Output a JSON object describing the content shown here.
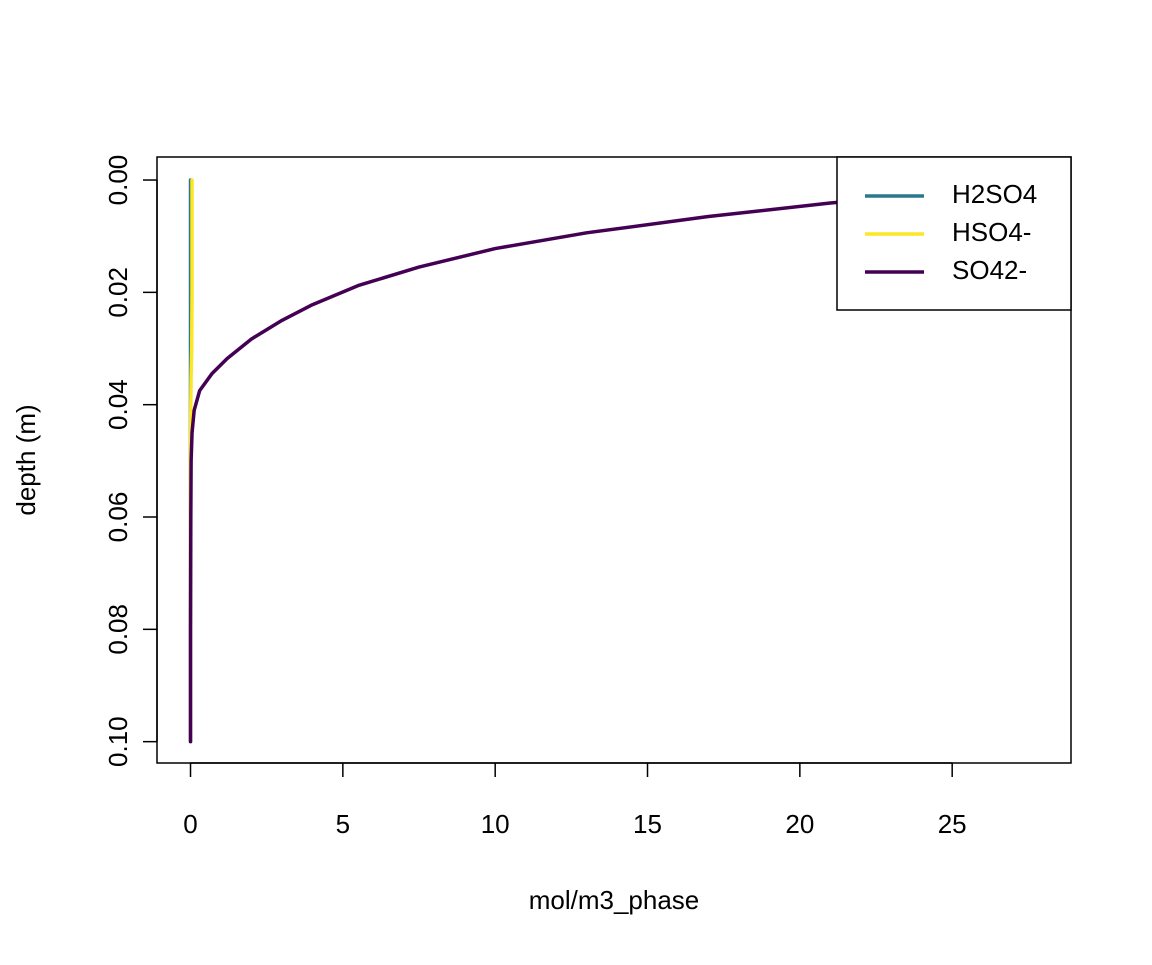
{
  "chart_data": {
    "type": "line",
    "title": "",
    "xlabel": "mol/m3_phase",
    "ylabel": "depth (m)",
    "xlim": [
      -1.1,
      28.9
    ],
    "ylim": [
      0.1038,
      -0.0041
    ],
    "y_reversed": true,
    "x_ticks": [
      0,
      5,
      10,
      15,
      20,
      25
    ],
    "x_tick_labels": [
      "0",
      "5",
      "10",
      "15",
      "20",
      "25"
    ],
    "y_ticks": [
      0.0,
      0.02,
      0.04,
      0.06,
      0.08,
      0.1
    ],
    "y_tick_labels": [
      "0.00",
      "0.02",
      "0.04",
      "0.06",
      "0.08",
      "0.10"
    ],
    "grid": false,
    "legend_position": "top-right",
    "series": [
      {
        "name": "H2SO4",
        "color": "#2a788e",
        "points": [
          [
            0,
            0.0
          ],
          [
            0,
            0.02
          ],
          [
            0,
            0.04
          ],
          [
            0,
            0.06
          ],
          [
            0,
            0.08
          ],
          [
            0,
            0.1
          ]
        ]
      },
      {
        "name": "HSO4-",
        "color": "#fde725",
        "points": [
          [
            0.05,
            0.0
          ],
          [
            0.05,
            0.01
          ],
          [
            0.05,
            0.02
          ],
          [
            0.04,
            0.03
          ],
          [
            0.02,
            0.035
          ],
          [
            0.01,
            0.04
          ],
          [
            0,
            0.05
          ],
          [
            0,
            0.1
          ]
        ]
      },
      {
        "name": "SO42-",
        "color": "#440154",
        "points": [
          [
            29.5,
            0.0
          ],
          [
            24.4,
            0.0025
          ],
          [
            21.0,
            0.0041
          ],
          [
            17.0,
            0.0065
          ],
          [
            13.0,
            0.0094
          ],
          [
            10.0,
            0.0122
          ],
          [
            7.5,
            0.0155
          ],
          [
            5.5,
            0.0188
          ],
          [
            4.0,
            0.0222
          ],
          [
            3.0,
            0.025
          ],
          [
            2.0,
            0.0283
          ],
          [
            1.2,
            0.0318
          ],
          [
            0.7,
            0.0345
          ],
          [
            0.3,
            0.0375
          ],
          [
            0.12,
            0.041
          ],
          [
            0.05,
            0.045
          ],
          [
            0.02,
            0.05
          ],
          [
            0.01,
            0.06
          ],
          [
            0,
            0.08
          ],
          [
            0,
            0.1
          ]
        ]
      }
    ]
  }
}
